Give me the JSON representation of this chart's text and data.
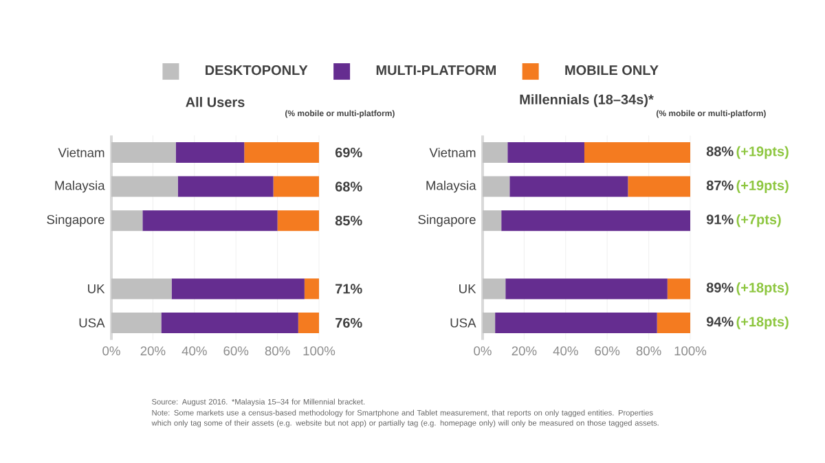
{
  "chart_data": [
    {
      "type": "bar",
      "orientation": "horizontal",
      "stacked": true,
      "title": "All Users",
      "categories": [
        "Vietnam",
        "Malaysia",
        "Singapore",
        null,
        "UK",
        "USA"
      ],
      "series": [
        {
          "name": "DESKTOPONLY",
          "color": "#bfbfbf",
          "values": [
            31,
            32,
            15,
            null,
            29,
            24
          ]
        },
        {
          "name": "MULTI-PLATFORM",
          "color": "#652d90",
          "values": [
            33,
            46,
            65,
            null,
            64,
            66
          ]
        },
        {
          "name": "MOBILE ONLY",
          "color": "#f47b20",
          "values": [
            36,
            22,
            20,
            null,
            7,
            10
          ]
        }
      ],
      "xlim": [
        0,
        100
      ],
      "xticks": [
        {
          "value": 0,
          "label": "0%"
        },
        {
          "value": 20,
          "label": "20%"
        },
        {
          "value": 40,
          "label": "40%"
        },
        {
          "value": 60,
          "label": "60%"
        },
        {
          "value": 80,
          "label": "80%"
        },
        {
          "value": 100,
          "label": "100%"
        }
      ],
      "grid": "x",
      "legend": "top",
      "annotations": [
        "(% mobile or multi-platform)",
        "69%",
        "68%",
        "85%",
        "71%",
        "76%"
      ]
    },
    {
      "type": "bar",
      "orientation": "horizontal",
      "stacked": true,
      "title": "Millennials (18–34s)*",
      "categories": [
        "Vietnam",
        "Malaysia",
        "Singapore",
        null,
        "UK",
        "USA"
      ],
      "series": [
        {
          "color": "#bfbfbf",
          "values": [
            12,
            13,
            9,
            null,
            11,
            6
          ]
        },
        {
          "color": "#652d90",
          "values": [
            37,
            57,
            91,
            null,
            78,
            78
          ]
        },
        {
          "color": "#f47b20",
          "values": [
            51,
            30,
            0,
            null,
            11,
            16
          ]
        }
      ],
      "xlim": [
        0,
        100
      ],
      "xticks": [
        {
          "value": 0,
          "label": "0%"
        },
        {
          "value": 20,
          "label": "20%"
        },
        {
          "value": 40,
          "label": "40%"
        },
        {
          "value": 60,
          "label": "60%"
        },
        {
          "value": 80,
          "label": "80%"
        },
        {
          "value": 100,
          "label": "100%"
        }
      ],
      "grid": "x",
      "annotations": [
        "(% mobile or multi-platform)",
        "88%",
        "(+19pts)",
        "87%",
        "(+19pts)",
        "91%",
        "(+7pts)",
        "89%",
        "(+18pts)",
        "94%",
        "(+18pts)",
        "Source: August 2016. *Malaysia 15–34 for Millennial bracket.",
        "Note: Some markets use a census-based methodology for Smartphone and Tablet measurement, that reports on only tagged entities. Properties which only tag some of their assets (e.g. website but not app) or partially tag (e.g. homepage only) will only be measured on those tagged assets."
      ]
    }
  ]
}
